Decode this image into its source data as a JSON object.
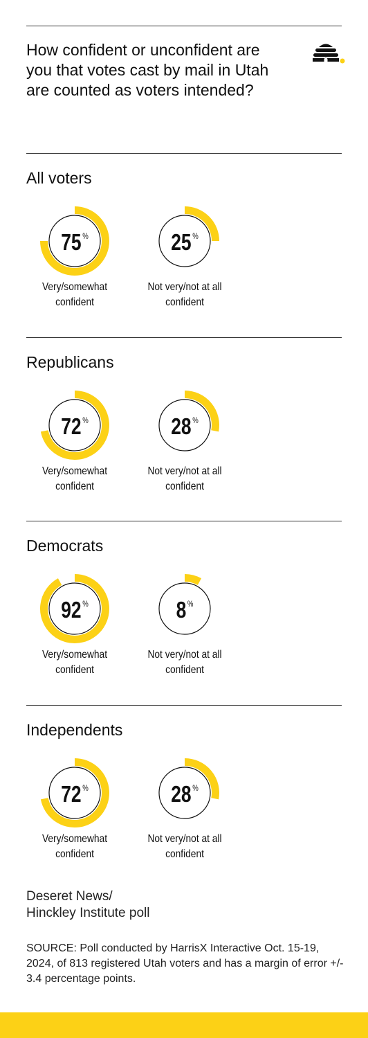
{
  "title": "How confident or unconfident are you that votes cast by mail in Utah are counted as voters intended?",
  "colors": {
    "accent": "#fcd116",
    "ring": "#111111",
    "text": "#111111",
    "background": "#ffffff"
  },
  "logo_icon": "beehive-icon",
  "chart_data": {
    "type": "pie",
    "title": "How confident or unconfident are you that votes cast by mail in Utah are counted as voters intended?",
    "unit": "%",
    "categories": [
      "Very/somewhat confident",
      "Not very/not at all confident"
    ],
    "groups": [
      {
        "name": "All voters",
        "values": [
          75,
          25
        ]
      },
      {
        "name": "Republicans",
        "values": [
          72,
          28
        ]
      },
      {
        "name": "Democrats",
        "values": [
          92,
          8
        ]
      },
      {
        "name": "Independents",
        "values": [
          72,
          28
        ]
      }
    ]
  },
  "labels": {
    "confident": [
      "Very/somewhat",
      "confident"
    ],
    "not_confident": [
      "Not very/not at all",
      "confident"
    ]
  },
  "footer": {
    "brand": [
      "Deseret News/",
      "Hinckley Institute poll"
    ],
    "source": "SOURCE: Poll conducted by HarrisX Interactive Oct. 15-19, 2024, of 813 registered Utah voters and has a margin of error +/- 3.4 percentage points."
  }
}
